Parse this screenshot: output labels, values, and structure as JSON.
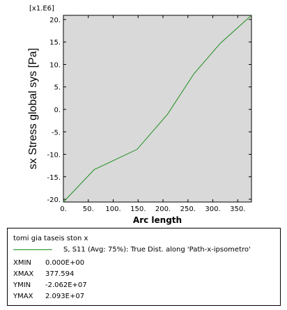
{
  "chart_data": {
    "type": "line",
    "multiplier_label": "[x1.E6]",
    "ylabel": "sx  Stress global sys [Pa]",
    "xlabel": "Arc length",
    "xlim": [
      0,
      377.594
    ],
    "ylim": [
      -20.62,
      20.93
    ],
    "xticks": [
      0,
      50,
      100,
      150,
      200,
      250,
      300,
      350
    ],
    "xtick_labels": [
      "0.",
      "50.",
      "100.",
      "150.",
      "200.",
      "250.",
      "300.",
      "350."
    ],
    "yticks": [
      -20,
      -15,
      -10,
      -5,
      0,
      5,
      10,
      15,
      20
    ],
    "ytick_labels": [
      "-20.",
      "-15.",
      "-10.",
      "-5.",
      "0.",
      "5.",
      "10.",
      "15.",
      "20."
    ],
    "grid": false,
    "background": "#d9d9d9",
    "series": [
      {
        "name": "S, S11 (Avg: 75%): True Dist. along 'Path-x-ipsometro'",
        "color": "#1a8c1a",
        "x": [
          0,
          62,
          148,
          209,
          262,
          315,
          377.594
        ],
        "y": [
          -20.62,
          -13.4,
          -8.9,
          -1.1,
          7.9,
          14.7,
          20.93
        ]
      }
    ]
  },
  "legend": {
    "title": "tomi gia taseis ston x",
    "entry": "S, S11 (Avg: 75%): True Dist. along 'Path-x-ipsometro'",
    "stats": [
      {
        "key": "XMIN",
        "value": "0.000E+00"
      },
      {
        "key": "XMAX",
        "value": "377.594"
      },
      {
        "key": "YMIN",
        "value": "-2.062E+07"
      },
      {
        "key": "YMAX",
        "value": "2.093E+07"
      }
    ]
  }
}
